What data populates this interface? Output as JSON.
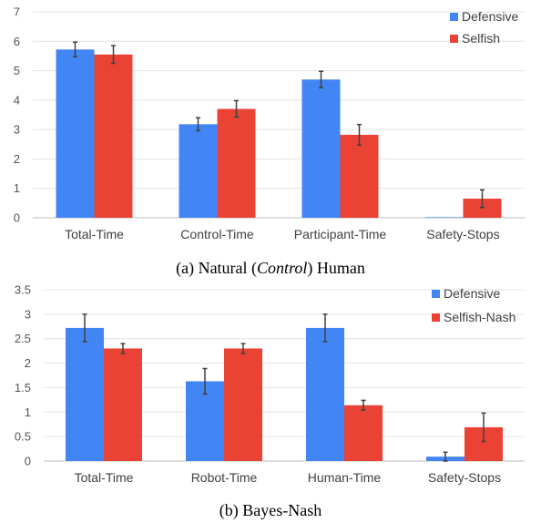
{
  "chart_data": [
    {
      "type": "bar",
      "caption": {
        "prefix": "(a) Natural (",
        "italic": "Control",
        "suffix": ") Human"
      },
      "categories": [
        "Total-Time",
        "Control-Time",
        "Participant-Time",
        "Safety-Stops"
      ],
      "series": [
        {
          "name": "Defensive",
          "color": "#4285f4",
          "values": [
            5.72,
            3.18,
            4.7,
            0.02
          ],
          "errors": [
            0.25,
            0.22,
            0.28,
            0.0
          ]
        },
        {
          "name": "Selfish",
          "color": "#ea4335",
          "values": [
            5.55,
            3.7,
            2.82,
            0.65
          ],
          "errors": [
            0.3,
            0.28,
            0.35,
            0.3
          ]
        }
      ],
      "yticks": [
        "0",
        "1",
        "2",
        "3",
        "4",
        "5",
        "6",
        "7"
      ],
      "ylim": [
        0,
        7
      ],
      "grid": true,
      "legend": "top-right"
    },
    {
      "type": "bar",
      "caption": {
        "prefix": "(b) Bayes-Nash",
        "italic": "",
        "suffix": ""
      },
      "categories": [
        "Total-Time",
        "Robot-Time",
        "Human-Time",
        "Safety-Stops"
      ],
      "series": [
        {
          "name": "Defensive",
          "color": "#4285f4",
          "values": [
            2.72,
            1.63,
            2.72,
            0.09
          ],
          "errors": [
            0.28,
            0.26,
            0.28,
            0.09
          ]
        },
        {
          "name": "Selfish-Nash",
          "color": "#ea4335",
          "values": [
            2.3,
            2.3,
            1.14,
            0.69
          ],
          "errors": [
            0.1,
            0.1,
            0.1,
            0.29
          ]
        }
      ],
      "yticks": [
        "0",
        "0.5",
        "1",
        "1.5",
        "2",
        "2.5",
        "3",
        "3.5"
      ],
      "ylim": [
        0,
        3.5
      ],
      "grid": true,
      "legend": "top-right"
    }
  ]
}
